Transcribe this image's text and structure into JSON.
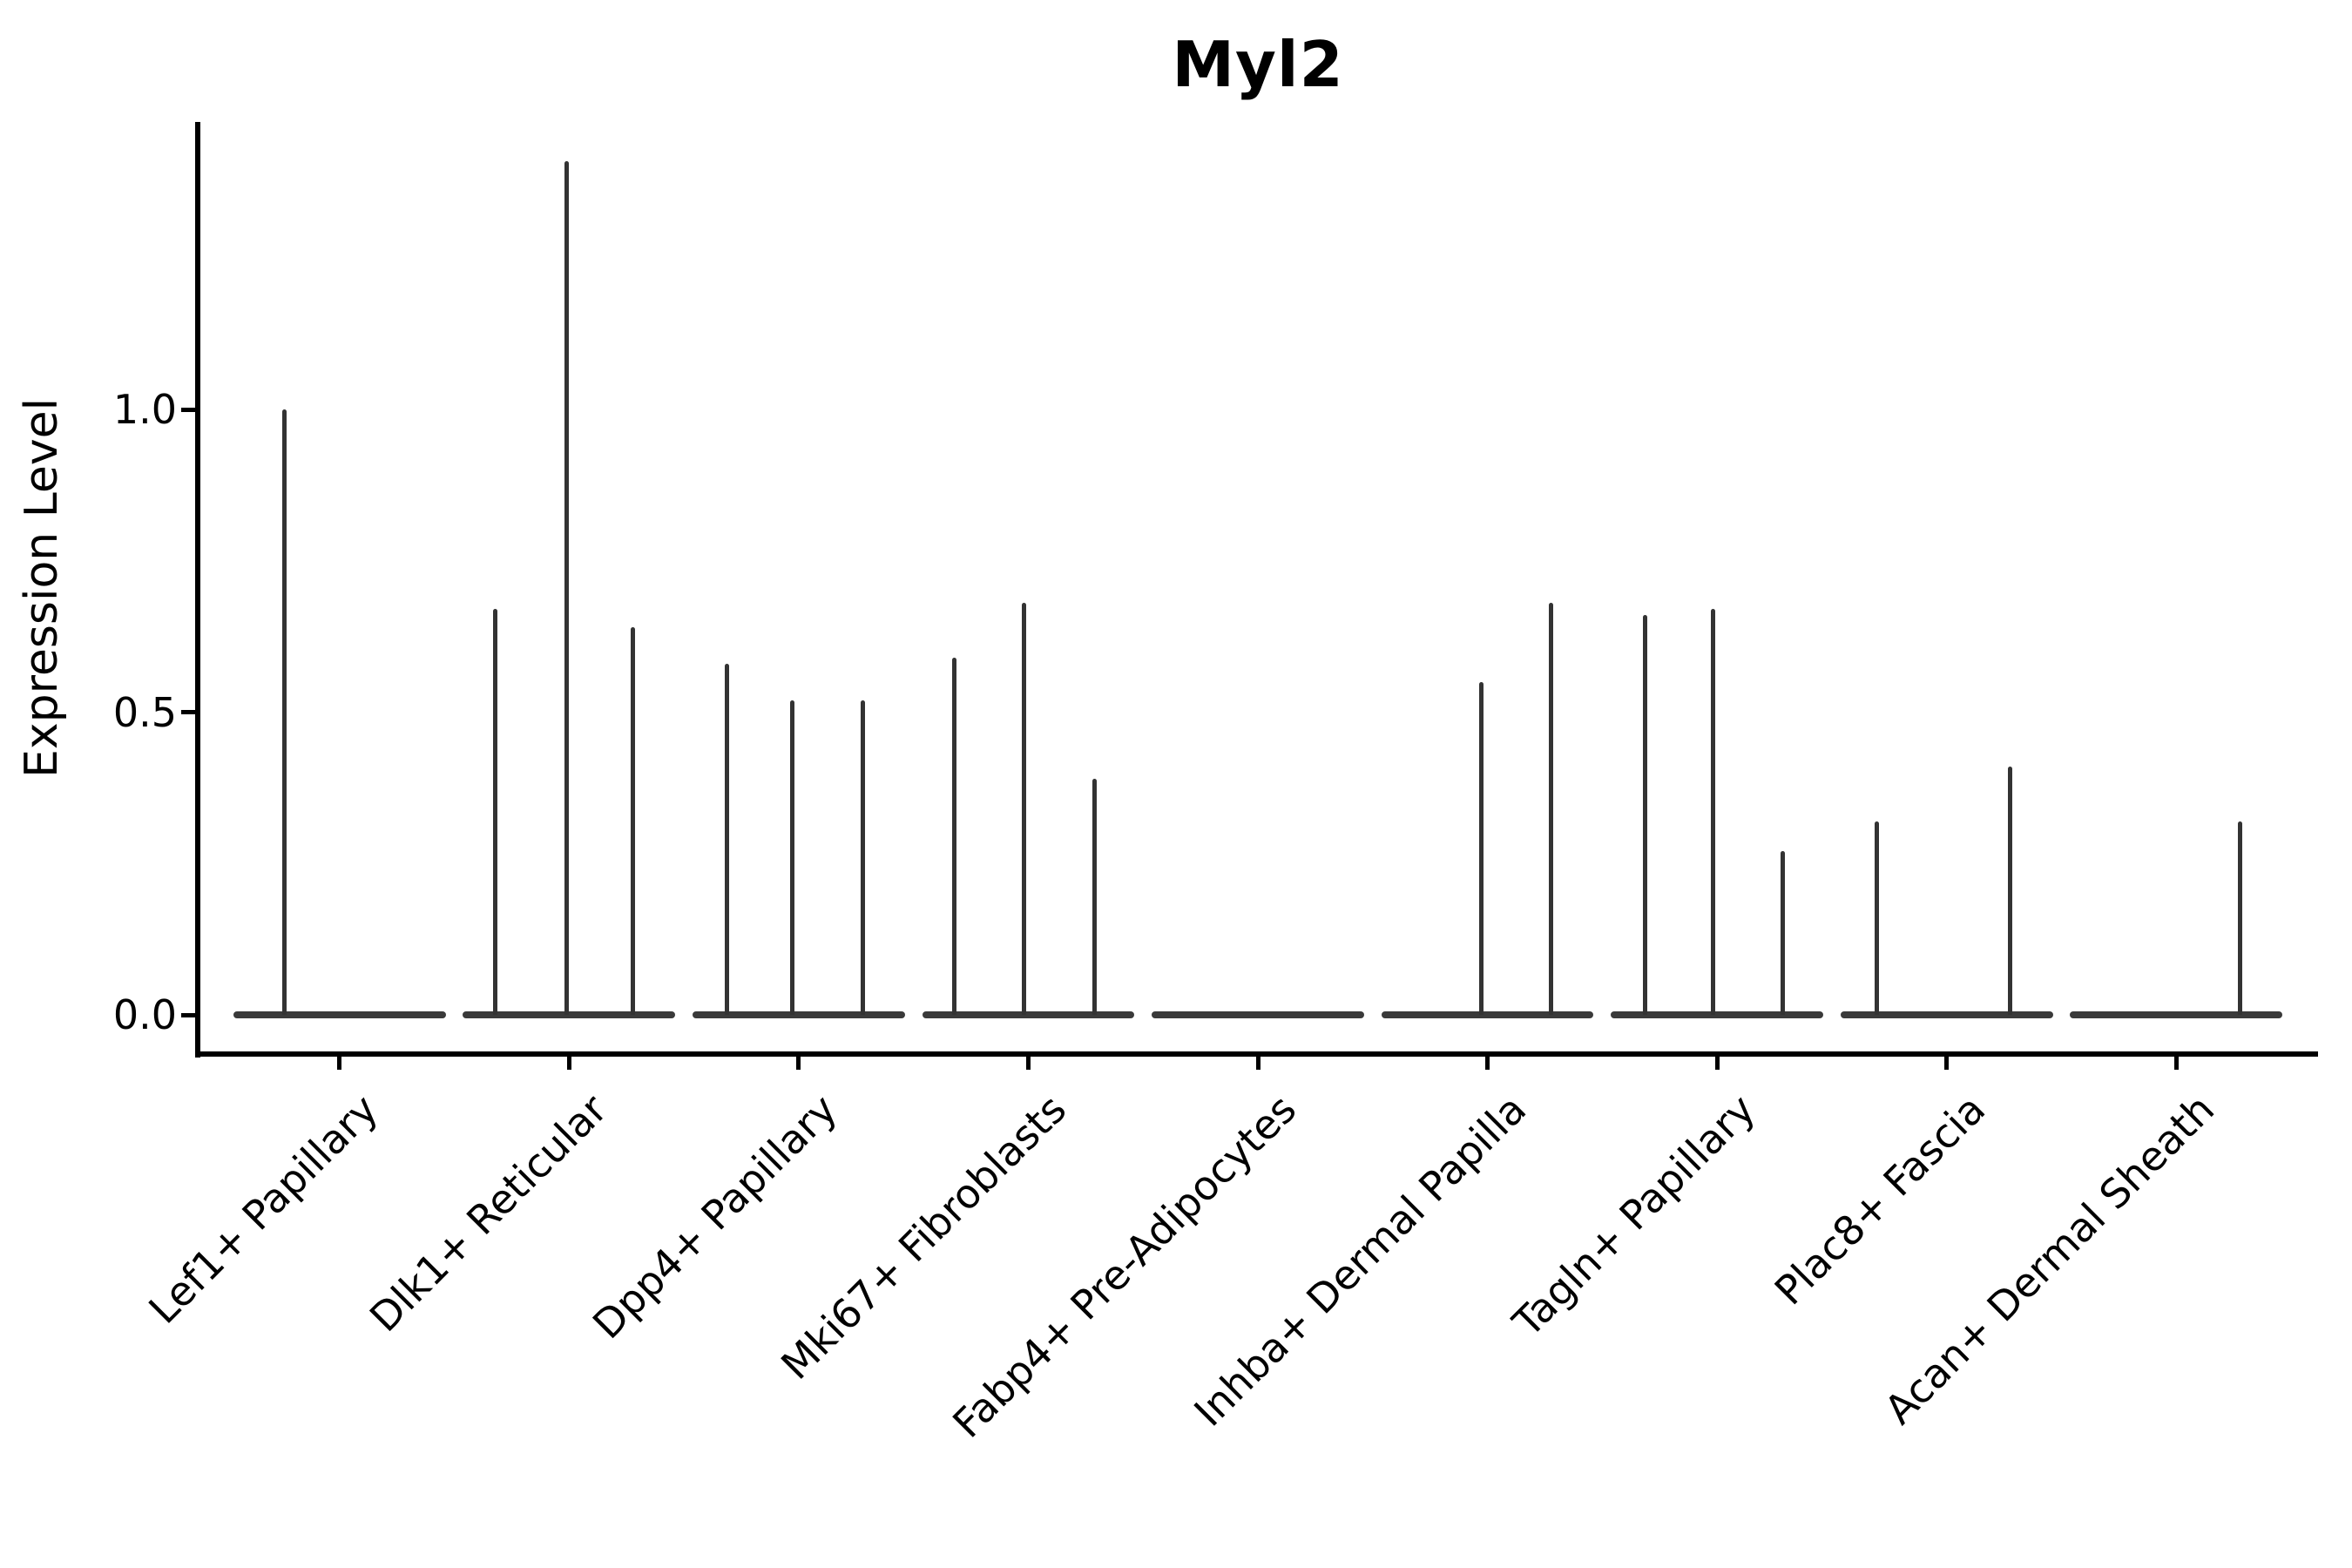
{
  "title": "Myl2",
  "y_axis": {
    "label": "Expression Level",
    "ticks": [
      {
        "label": "0.0",
        "value": 0.0
      },
      {
        "label": "0.5",
        "value": 0.5
      },
      {
        "label": "1.0",
        "value": 1.0
      }
    ]
  },
  "chart_data": {
    "type": "violin",
    "title": "Myl2",
    "xlabel": "",
    "ylabel": "Expression Level",
    "ylim": [
      -0.07,
      1.48
    ],
    "grid": false,
    "legend": "none",
    "style_note": "Collapsed violins: flat baseline bar at expression 0 for each cell type, with thin vertical density spikes where rare Myl2-positive cells occur",
    "categories": [
      "Lef1+ Papillary",
      "Dlk1+ Reticular",
      "Dpp4+ Papillary",
      "Mki67+ Fibroblasts",
      "Fabp4+ Pre-Adipocytes",
      "Inhba+ Dermal Papilla",
      "Tagln+ Papillary",
      "Plac8+ Fascia",
      "Acan+ Dermal Sheath"
    ],
    "series": [
      {
        "name": "Lef1+ Papillary",
        "baseline": 0.0,
        "spikes": [
          {
            "pos": 0.24,
            "value": 1.0
          }
        ]
      },
      {
        "name": "Dlk1+ Reticular",
        "baseline": 0.0,
        "spikes": [
          {
            "pos": 0.15,
            "value": 0.67
          },
          {
            "pos": 0.49,
            "value": 1.41
          },
          {
            "pos": 0.8,
            "value": 0.64
          }
        ]
      },
      {
        "name": "Dpp4+ Papillary",
        "baseline": 0.0,
        "spikes": [
          {
            "pos": 0.16,
            "value": 0.58
          },
          {
            "pos": 0.47,
            "value": 0.52
          },
          {
            "pos": 0.8,
            "value": 0.52
          }
        ]
      },
      {
        "name": "Mki67+ Fibroblasts",
        "baseline": 0.0,
        "spikes": [
          {
            "pos": 0.15,
            "value": 0.59
          },
          {
            "pos": 0.48,
            "value": 0.68
          },
          {
            "pos": 0.81,
            "value": 0.39
          }
        ]
      },
      {
        "name": "Fabp4+ Pre-Adipocytes",
        "baseline": 0.0,
        "spikes": []
      },
      {
        "name": "Inhba+ Dermal Papilla",
        "baseline": 0.0,
        "spikes": [
          {
            "pos": 0.47,
            "value": 0.55
          },
          {
            "pos": 0.8,
            "value": 0.68
          }
        ]
      },
      {
        "name": "Tagln+ Papillary",
        "baseline": 0.0,
        "spikes": [
          {
            "pos": 0.16,
            "value": 0.66
          },
          {
            "pos": 0.48,
            "value": 0.67
          },
          {
            "pos": 0.81,
            "value": 0.27
          }
        ]
      },
      {
        "name": "Plac8+ Fascia",
        "baseline": 0.0,
        "spikes": [
          {
            "pos": 0.17,
            "value": 0.32
          },
          {
            "pos": 0.8,
            "value": 0.41
          }
        ]
      },
      {
        "name": "Acan+ Dermal Sheath",
        "baseline": 0.0,
        "spikes": [
          {
            "pos": 0.8,
            "value": 0.32
          }
        ]
      }
    ],
    "colors": {
      "violin": "#333333",
      "baseline": "#3a3a3a",
      "axis": "#000000",
      "background": "#ffffff"
    }
  }
}
